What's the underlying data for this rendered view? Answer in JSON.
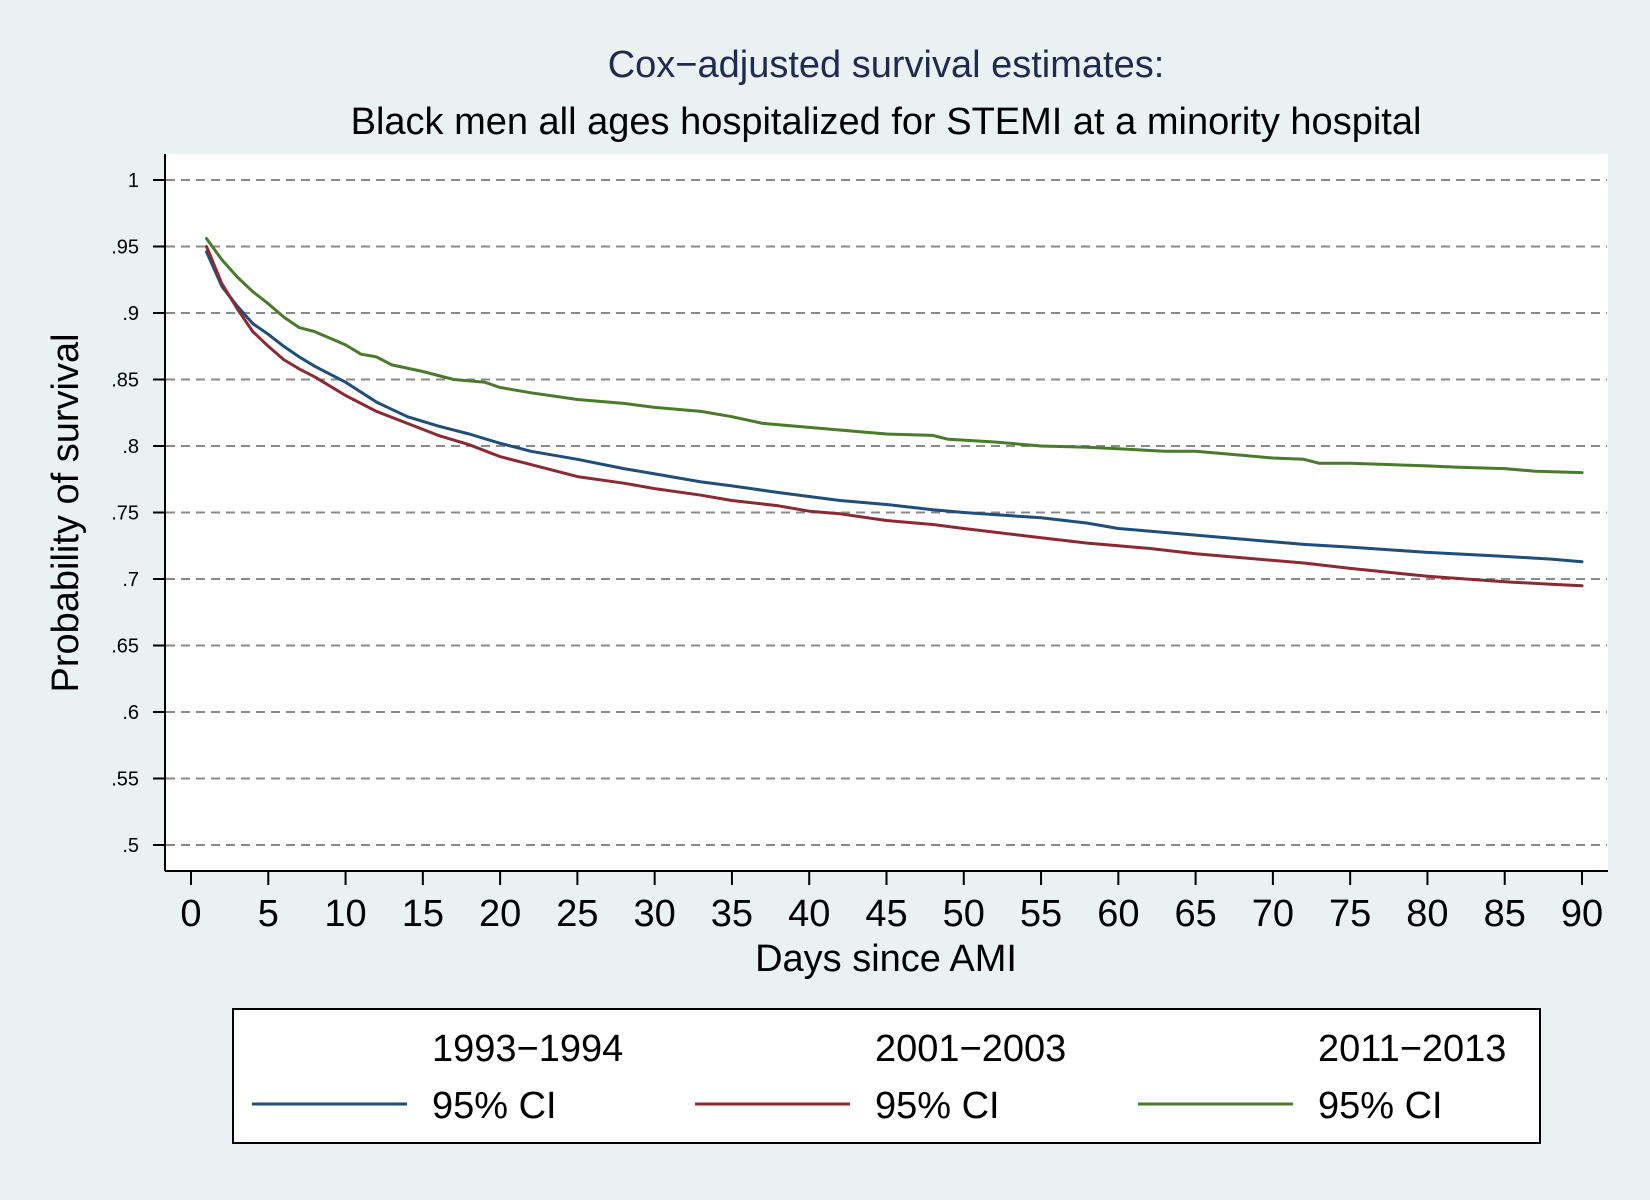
{
  "chart_data": {
    "type": "line",
    "title": "Cox−adjusted survival estimates:",
    "subtitle": "Black men all ages hospitalized for STEMI at a minority hospital",
    "xlabel": "Days since AMI",
    "ylabel": "Probability of survival",
    "xlim": [
      0,
      90
    ],
    "ylim": [
      0.5,
      1
    ],
    "xticks": [
      0,
      5,
      10,
      15,
      20,
      25,
      30,
      35,
      40,
      45,
      50,
      55,
      60,
      65,
      70,
      75,
      80,
      85,
      90
    ],
    "xtick_labels": [
      "0",
      "5",
      "10",
      "15",
      "20",
      "25",
      "30",
      "35",
      "40",
      "45",
      "50",
      "55",
      "60",
      "65",
      "70",
      "75",
      "80",
      "85",
      "90"
    ],
    "yticks": [
      0.5,
      0.55,
      0.6,
      0.65,
      0.7,
      0.75,
      0.8,
      0.85,
      0.9,
      0.95,
      1
    ],
    "ytick_labels": [
      ".5",
      ".55",
      ".6",
      ".65",
      ".7",
      ".75",
      ".8",
      ".85",
      ".9",
      ".95",
      "1"
    ],
    "grid": true,
    "legend_position": "bottom",
    "series": [
      {
        "name": "1993−1994",
        "ci_label": "95% CI",
        "color": "#1f4e79",
        "x": [
          1,
          2,
          3,
          4,
          5,
          6,
          7,
          8,
          10,
          12,
          14,
          16,
          18,
          20,
          22,
          25,
          28,
          30,
          33,
          35,
          38,
          40,
          42,
          45,
          48,
          50,
          55,
          58,
          60,
          62,
          65,
          68,
          70,
          72,
          75,
          80,
          85,
          88,
          90
        ],
        "y": [
          0.946,
          0.92,
          0.905,
          0.892,
          0.884,
          0.875,
          0.867,
          0.86,
          0.848,
          0.833,
          0.822,
          0.815,
          0.809,
          0.802,
          0.796,
          0.79,
          0.783,
          0.779,
          0.773,
          0.77,
          0.765,
          0.762,
          0.759,
          0.756,
          0.752,
          0.75,
          0.746,
          0.742,
          0.738,
          0.736,
          0.733,
          0.73,
          0.728,
          0.726,
          0.724,
          0.72,
          0.717,
          0.715,
          0.713
        ]
      },
      {
        "name": "2001−2003",
        "ci_label": "95% CI",
        "color": "#8b2a32",
        "x": [
          1,
          2,
          3,
          4,
          5,
          6,
          7,
          8,
          10,
          12,
          14,
          16,
          18,
          20,
          22,
          25,
          28,
          30,
          33,
          35,
          38,
          40,
          42,
          45,
          48,
          50,
          55,
          58,
          60,
          62,
          65,
          68,
          70,
          72,
          75,
          80,
          85,
          88,
          90
        ],
        "y": [
          0.95,
          0.922,
          0.903,
          0.886,
          0.875,
          0.865,
          0.858,
          0.852,
          0.838,
          0.826,
          0.817,
          0.808,
          0.801,
          0.792,
          0.786,
          0.777,
          0.772,
          0.768,
          0.763,
          0.759,
          0.755,
          0.751,
          0.749,
          0.744,
          0.741,
          0.738,
          0.731,
          0.727,
          0.725,
          0.723,
          0.719,
          0.716,
          0.714,
          0.712,
          0.708,
          0.702,
          0.698,
          0.696,
          0.695
        ]
      },
      {
        "name": "2011−2013",
        "ci_label": "95% CI",
        "color": "#4a7a2c",
        "x": [
          1,
          2,
          3,
          4,
          5,
          6,
          7,
          8,
          10,
          11,
          12,
          13,
          15,
          17,
          19,
          20,
          22,
          25,
          28,
          30,
          33,
          35,
          37,
          40,
          43,
          45,
          48,
          49,
          52,
          55,
          58,
          60,
          63,
          65,
          68,
          70,
          72,
          73,
          75,
          80,
          82,
          85,
          87,
          90
        ],
        "y": [
          0.956,
          0.94,
          0.927,
          0.916,
          0.907,
          0.897,
          0.889,
          0.886,
          0.876,
          0.869,
          0.867,
          0.861,
          0.856,
          0.85,
          0.848,
          0.844,
          0.84,
          0.835,
          0.832,
          0.829,
          0.826,
          0.822,
          0.817,
          0.814,
          0.811,
          0.809,
          0.808,
          0.805,
          0.803,
          0.8,
          0.799,
          0.798,
          0.796,
          0.796,
          0.793,
          0.791,
          0.79,
          0.787,
          0.787,
          0.785,
          0.784,
          0.783,
          0.781,
          0.78
        ]
      }
    ]
  }
}
